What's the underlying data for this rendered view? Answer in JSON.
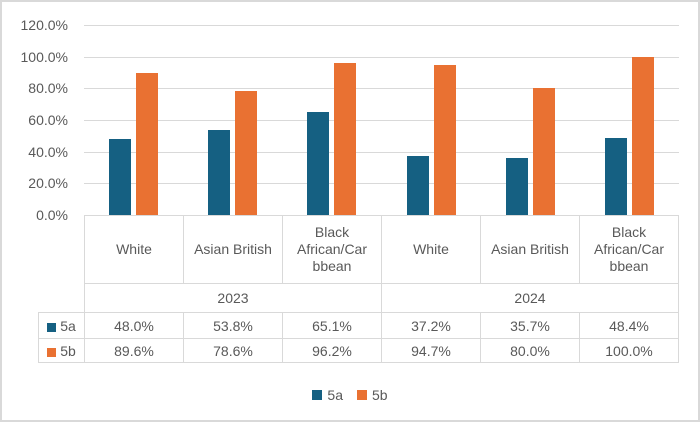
{
  "chart_data": {
    "type": "bar",
    "title": "",
    "xlabel": "",
    "ylabel": "",
    "categories": [
      "White",
      "Asian British",
      "Black African/Carbbean",
      "White",
      "Asian British",
      "Black African/Carbbean"
    ],
    "group_labels": [
      "2023",
      "2024"
    ],
    "series": [
      {
        "name": "5a",
        "color": "#156082",
        "values": [
          48.0,
          53.8,
          65.1,
          37.2,
          35.7,
          48.4
        ]
      },
      {
        "name": "5b",
        "color": "#E97132",
        "values": [
          89.6,
          78.6,
          96.2,
          94.7,
          80.0,
          100.0
        ]
      }
    ],
    "ylim": [
      0,
      120
    ],
    "ytick_step": 20,
    "ytick_labels_top_to_bottom": [
      "120.0%",
      "100.0%",
      "80.0%",
      "60.0%",
      "40.0%",
      "20.0%",
      "0.0%"
    ],
    "grid": true,
    "legend_position": "bottom",
    "data_table_shown": true
  },
  "table": {
    "column_headers": [
      "White",
      "Asian British",
      "Black\nAfrican/Car\nbbean",
      "White",
      "Asian British",
      "Black\nAfrican/Car\nbbean"
    ],
    "year_headers": [
      "2023",
      "2024"
    ],
    "rows": [
      {
        "label": "5a",
        "swatch_color": "#156082",
        "values": [
          "48.0%",
          "53.8%",
          "65.1%",
          "37.2%",
          "35.7%",
          "48.4%"
        ]
      },
      {
        "label": "5b",
        "swatch_color": "#E97132",
        "values": [
          "89.6%",
          "78.6%",
          "96.2%",
          "94.7%",
          "80.0%",
          "100.0%"
        ]
      }
    ]
  },
  "legend": {
    "items": [
      {
        "label": "5a",
        "color": "#156082"
      },
      {
        "label": "5b",
        "color": "#E97132"
      }
    ]
  },
  "colors": {
    "series_5a": "#156082",
    "series_5b": "#E97132",
    "gridline": "#d9d9d9",
    "axis_line": "#c6c6c6",
    "table_border": "#d9d9d9",
    "text": "#595959",
    "chart_border": "#d9d9d9",
    "background": "#ffffff"
  }
}
